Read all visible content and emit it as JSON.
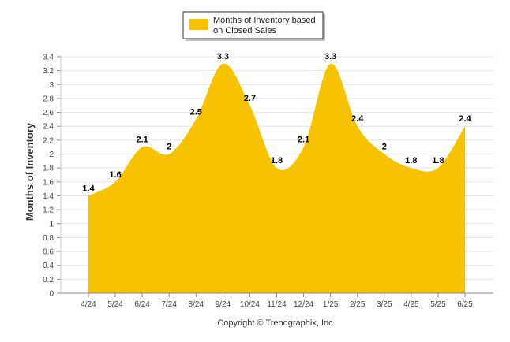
{
  "chart_data": {
    "type": "area",
    "categories": [
      "4/24",
      "5/24",
      "6/24",
      "7/24",
      "8/24",
      "9/24",
      "10/24",
      "11/24",
      "12/24",
      "1/25",
      "2/25",
      "3/25",
      "4/25",
      "5/25",
      "6/25"
    ],
    "series": [
      {
        "name": "Months of Inventory based on Closed Sales",
        "values": [
          1.4,
          1.6,
          2.1,
          2,
          2.5,
          3.3,
          2.7,
          1.8,
          2.1,
          3.3,
          2.4,
          2,
          1.8,
          1.8,
          2.4
        ],
        "color": "#F7C200"
      }
    ],
    "legend_lines": [
      "Months of Inventory based",
      "on Closed Sales"
    ],
    "ylabel": "Months of Inventory",
    "xlabel": "",
    "ylim": [
      0,
      3.4
    ],
    "yticks": [
      "0",
      "0.2",
      "0.4",
      "0.6",
      "0.8",
      "1",
      "1.2",
      "1.4",
      "1.6",
      "1.8",
      "2",
      "2.2",
      "2.4",
      "2.6",
      "2.8",
      "3",
      "3.2",
      "3.4"
    ],
    "grid": true,
    "legend_position": "top-center"
  },
  "footer": {
    "copyright": "Copyright © Trendgraphix, Inc."
  }
}
